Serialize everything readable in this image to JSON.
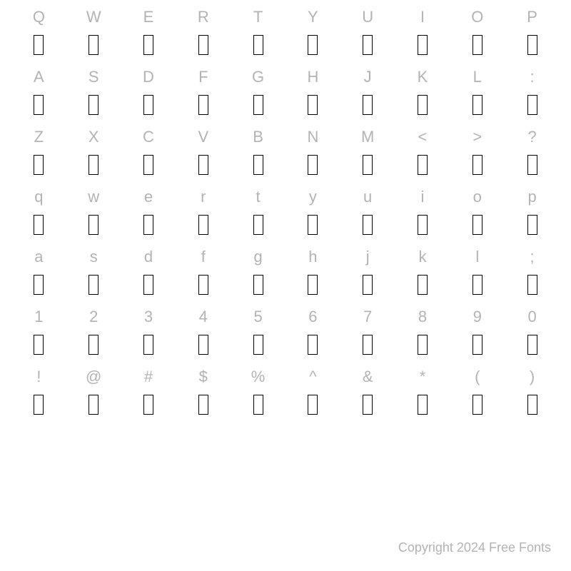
{
  "rows": [
    [
      "Q",
      "W",
      "E",
      "R",
      "T",
      "Y",
      "U",
      "I",
      "O",
      "P"
    ],
    [
      "A",
      "S",
      "D",
      "F",
      "G",
      "H",
      "J",
      "K",
      "L",
      ":"
    ],
    [
      "Z",
      "X",
      "C",
      "V",
      "B",
      "N",
      "M",
      "<",
      ">",
      "?"
    ],
    [
      "q",
      "w",
      "e",
      "r",
      "t",
      "y",
      "u",
      "i",
      "o",
      "p"
    ],
    [
      "a",
      "s",
      "d",
      "f",
      "g",
      "h",
      "j",
      "k",
      "l",
      ";"
    ],
    [
      "1",
      "2",
      "3",
      "4",
      "5",
      "6",
      "7",
      "8",
      "9",
      "0"
    ],
    [
      "!",
      "@",
      "#",
      "$",
      "%",
      "^",
      "&",
      "*",
      "(",
      ")"
    ]
  ],
  "cols": 10,
  "styling": {
    "background_color": "#ffffff",
    "char_color": "#b3b3b3",
    "char_fontsize": 22,
    "glyph_border_color": "#000000",
    "glyph_fill": "#ffffff",
    "glyph_width": 14,
    "glyph_height": 28,
    "copyright_color": "#b3b3b3",
    "copyright_fontsize": 18
  },
  "copyright": "Copyright 2024 Free Fonts"
}
